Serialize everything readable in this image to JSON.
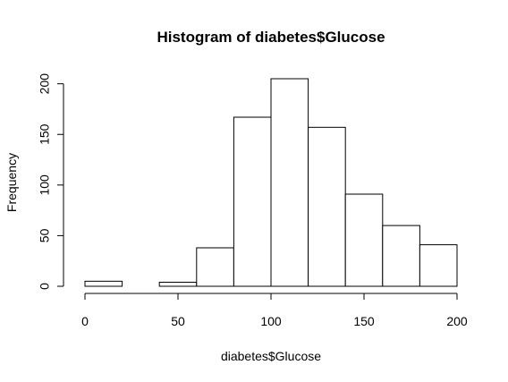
{
  "chart_data": {
    "type": "bar",
    "title": "Histogram of diabetes$Glucose",
    "xlabel": "diabetes$Glucose",
    "ylabel": "Frequency",
    "bins": [
      {
        "from": 0,
        "to": 20,
        "count": 5
      },
      {
        "from": 20,
        "to": 40,
        "count": 0
      },
      {
        "from": 40,
        "to": 60,
        "count": 4
      },
      {
        "from": 60,
        "to": 80,
        "count": 38
      },
      {
        "from": 80,
        "to": 100,
        "count": 167
      },
      {
        "from": 100,
        "to": 120,
        "count": 205
      },
      {
        "from": 120,
        "to": 140,
        "count": 157
      },
      {
        "from": 140,
        "to": 160,
        "count": 91
      },
      {
        "from": 160,
        "to": 180,
        "count": 60
      },
      {
        "from": 180,
        "to": 200,
        "count": 41
      }
    ],
    "xlim": [
      0,
      200
    ],
    "ylim": [
      0,
      205
    ],
    "x_ticks": [
      0,
      50,
      100,
      150,
      200
    ],
    "y_ticks": [
      0,
      50,
      100,
      150,
      200
    ],
    "bar_fill": "#ffffff",
    "bar_stroke": "#000000",
    "grid": false,
    "legend": "none"
  }
}
